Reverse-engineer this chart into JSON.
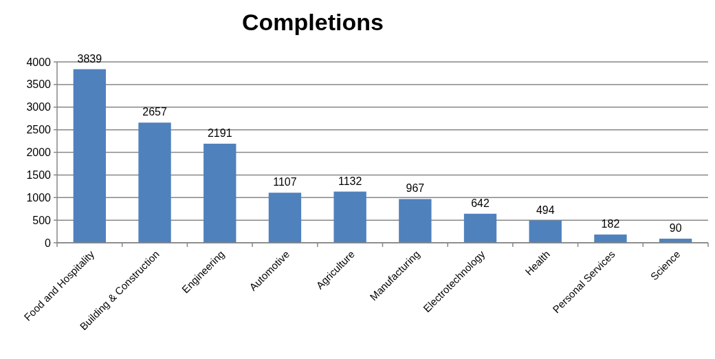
{
  "chart_data": {
    "type": "bar",
    "title": "Completions",
    "categories": [
      "Food and Hospitality",
      "Building & Construction",
      "Engineering",
      "Automotive",
      "Agriculture",
      "Manufacturing",
      "Electrotechnology",
      "Health",
      "Personal Services",
      "Science"
    ],
    "values": [
      3839,
      2657,
      2191,
      1107,
      1132,
      967,
      642,
      494,
      182,
      90
    ],
    "color": "#4f81bd",
    "ylim": [
      0,
      4000
    ],
    "yticks": [
      0,
      500,
      1000,
      1500,
      2000,
      2500,
      3000,
      3500,
      4000
    ],
    "grid": "y",
    "data_labels": true
  }
}
